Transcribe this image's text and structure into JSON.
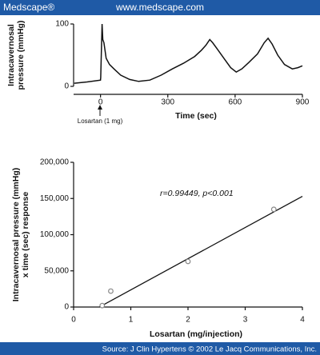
{
  "header": {
    "brand": "Medscape®",
    "url": "www.medscape.com"
  },
  "footer": "Source: J Clin Hypertens © 2002 Le Jacq Communications, Inc.",
  "chart_data": [
    {
      "type": "line",
      "ylabel": [
        "Intracavernosal",
        "pressure (mmHg)"
      ],
      "xlabel": "Time (sec)",
      "annotation": "Losartan (1 mg)",
      "x": [
        -117,
        -60,
        0,
        1,
        4,
        7,
        10,
        15,
        25,
        40,
        60,
        90,
        130,
        170,
        220,
        270,
        320,
        370,
        420,
        450,
        470,
        487,
        500,
        520,
        550,
        580,
        605,
        630,
        660,
        700,
        730,
        747,
        765,
        790,
        820,
        855,
        880,
        900
      ],
      "values": [
        5,
        7,
        10,
        14,
        60,
        100,
        75,
        70,
        45,
        35,
        28,
        18,
        11,
        8,
        10,
        18,
        28,
        37,
        48,
        58,
        66,
        75,
        70,
        60,
        45,
        30,
        23,
        28,
        38,
        52,
        70,
        77,
        68,
        50,
        35,
        28,
        30,
        33
      ],
      "color": "#111111",
      "xlim": [
        -120,
        900
      ],
      "ylim": [
        0,
        100
      ],
      "xticks": [
        0,
        300,
        600,
        900
      ],
      "yticks": [
        0,
        100
      ]
    },
    {
      "type": "scatter",
      "ylabel": [
        "Intracavernosal pressure (mmHg)",
        "x time (sec) response"
      ],
      "xlabel": "Losartan (mg/injection)",
      "annotation": "r=0.99449, p<0.001",
      "x": [
        0.5,
        0.65,
        2,
        3.5
      ],
      "values": [
        2000,
        22000,
        63000,
        135000
      ],
      "color": "#888888",
      "fit": {
        "x": [
          0.45,
          4
        ],
        "y": [
          0,
          153000
        ],
        "color": "#111111"
      },
      "xlim": [
        0,
        4
      ],
      "ylim": [
        0,
        200000
      ],
      "xticks": [
        0,
        1,
        2,
        3,
        4
      ],
      "yticks": [
        0,
        {
          "value": 50000,
          "label": "50,000"
        },
        {
          "value": 100000,
          "label": "100,000"
        },
        {
          "value": 150000,
          "label": "150,000"
        },
        {
          "value": 200000,
          "label": "200,000"
        }
      ]
    }
  ]
}
